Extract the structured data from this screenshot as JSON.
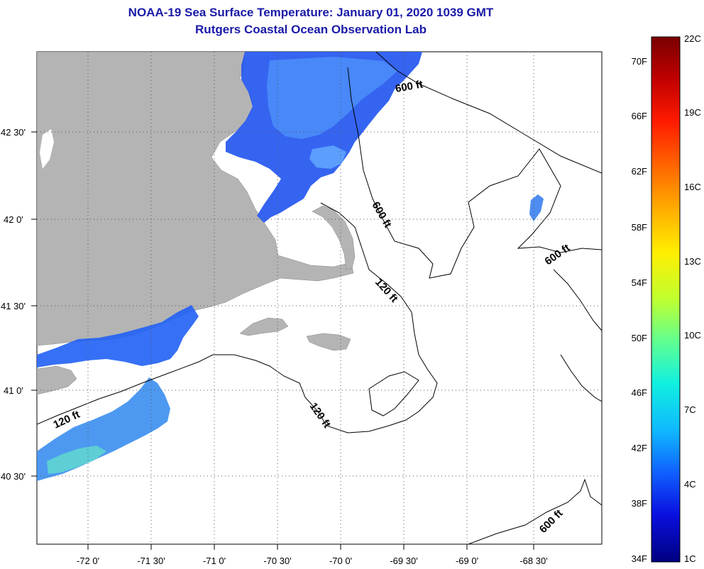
{
  "header": {
    "title_line1": "NOAA-19 Sea Surface Temperature:  January 01, 2020 1039 GMT",
    "title_line2": "Rutgers Coastal Ocean Observation Lab",
    "title_color": "#1a1aa8"
  },
  "map": {
    "longitude_labels": [
      "-72 0'",
      "-71 30'",
      "-71 0'",
      "-70 30'",
      "-70 0'",
      "-69 30'",
      "-69 0'",
      "-68 30'"
    ],
    "latitude_labels": [
      "42 30'",
      "42 0'",
      "41 30'",
      "41 0'",
      "40 30'"
    ],
    "contour_labels": [
      "600 ft",
      "600 ft",
      "600 ft",
      "600 ft",
      "120 ft",
      "120 ft",
      "120 ft"
    ],
    "land_color": "#b4b4b4",
    "ocean_color": "#ffffff"
  },
  "colorbar": {
    "fahrenheit_labels": [
      "70F",
      "66F",
      "62F",
      "58F",
      "54F",
      "50F",
      "46F",
      "42F",
      "38F",
      "34F"
    ],
    "celsius_labels": [
      "22C",
      "19C",
      "16C",
      "13C",
      "10C",
      "7C",
      "4C",
      "1C"
    ],
    "colors": [
      "#7a0000",
      "#c00000",
      "#ff1a00",
      "#ff6a00",
      "#ffae00",
      "#ffee00",
      "#bfff30",
      "#60ff90",
      "#10f0e0",
      "#10b8ff",
      "#1060ff",
      "#0a10e0",
      "#000080"
    ]
  }
}
